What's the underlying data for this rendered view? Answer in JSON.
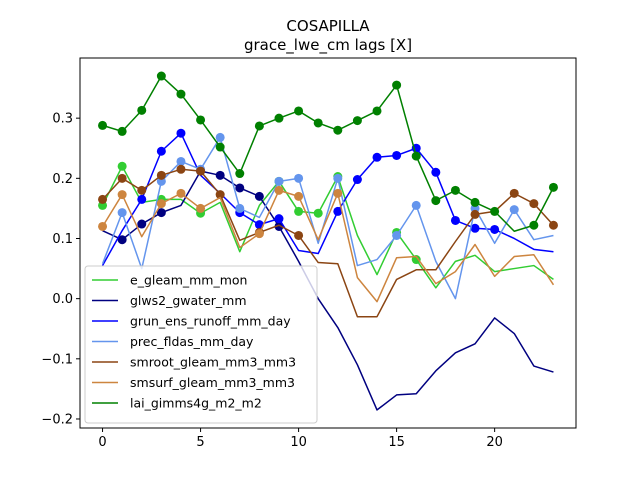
{
  "chart_data": {
    "type": "line",
    "title": "COSAPILLA",
    "subtitle": "grace_lwe_cm lags [X]",
    "xlabel": "",
    "ylabel": "",
    "xlim": [
      -1.15,
      24.15
    ],
    "ylim": [
      -0.215,
      0.4
    ],
    "x_ticks": [
      0,
      5,
      10,
      15,
      20
    ],
    "y_ticks": [
      -0.2,
      -0.1,
      0.0,
      0.1,
      0.2,
      0.3
    ],
    "y_tick_labels": [
      "−0.2",
      "−0.1",
      "0.0",
      "0.1",
      "0.2",
      "0.3"
    ],
    "grid": false,
    "legend_position": "lower-left",
    "x": [
      0,
      1,
      2,
      3,
      4,
      5,
      6,
      7,
      8,
      9,
      10,
      11,
      12,
      13,
      14,
      15,
      16,
      17,
      18,
      19,
      20,
      21,
      22,
      23
    ],
    "series": [
      {
        "name": "e_gleam_mm_mon",
        "color": "#32cd32",
        "values": [
          0.155,
          0.22,
          0.16,
          0.165,
          0.165,
          0.142,
          0.16,
          0.078,
          0.155,
          0.195,
          0.145,
          0.142,
          0.203,
          0.105,
          0.04,
          0.11,
          0.065,
          0.018,
          0.062,
          0.072,
          0.045,
          0.05,
          0.055,
          0.032
        ],
        "markers": [
          0,
          1,
          3,
          5,
          9,
          10,
          11,
          12,
          15,
          16
        ]
      },
      {
        "name": "glws2_gwater_mm",
        "color": "#000080",
        "values": [
          0.113,
          0.098,
          0.124,
          0.143,
          0.155,
          0.212,
          0.205,
          0.184,
          0.17,
          0.12,
          0.062,
          0.0,
          -0.048,
          -0.11,
          -0.185,
          -0.16,
          -0.158,
          -0.12,
          -0.09,
          -0.075,
          -0.032,
          -0.058,
          -0.112,
          -0.122
        ],
        "markers": [
          1,
          2,
          3,
          5,
          6,
          7,
          8,
          9
        ]
      },
      {
        "name": "grun_ens_runoff_mm_day",
        "color": "#0000ff",
        "values": [
          0.055,
          0.113,
          0.165,
          0.245,
          0.275,
          0.205,
          0.175,
          0.143,
          0.123,
          0.133,
          0.08,
          0.075,
          0.145,
          0.198,
          0.235,
          0.238,
          0.25,
          0.21,
          0.13,
          0.117,
          0.115,
          0.1,
          0.082,
          0.078
        ],
        "markers": [
          2,
          3,
          4,
          7,
          8,
          9,
          12,
          13,
          14,
          15,
          16,
          17,
          18,
          19,
          20
        ]
      },
      {
        "name": "prec_fldas_mm_day",
        "color": "#6495ed",
        "values": [
          0.058,
          0.143,
          0.05,
          0.195,
          0.228,
          0.215,
          0.268,
          0.15,
          0.135,
          0.195,
          0.2,
          0.092,
          0.2,
          0.055,
          0.065,
          0.105,
          0.155,
          0.062,
          0.0,
          0.15,
          0.092,
          0.148,
          0.098,
          0.105
        ],
        "markers": [
          1,
          3,
          4,
          5,
          6,
          7,
          9,
          10,
          12,
          15,
          16,
          19,
          21
        ]
      },
      {
        "name": "smroot_gleam_mm3_mm3",
        "color": "#8b4513",
        "values": [
          0.165,
          0.2,
          0.18,
          0.205,
          0.215,
          0.212,
          0.173,
          0.097,
          0.11,
          0.122,
          0.105,
          0.06,
          0.058,
          -0.03,
          -0.03,
          0.032,
          0.048,
          0.048,
          0.095,
          0.14,
          0.145,
          0.175,
          0.158,
          0.122
        ],
        "markers": [
          0,
          1,
          2,
          3,
          4,
          5,
          6,
          8,
          10,
          19,
          21,
          22,
          23
        ]
      },
      {
        "name": "smsurf_gleam_mm3_mm3",
        "color": "#cd853f",
        "values": [
          0.12,
          0.173,
          0.103,
          0.158,
          0.175,
          0.15,
          0.168,
          0.085,
          0.108,
          0.18,
          0.17,
          0.098,
          0.175,
          0.035,
          -0.005,
          0.068,
          0.07,
          0.025,
          0.045,
          0.09,
          0.037,
          0.07,
          0.073,
          0.023
        ],
        "markers": [
          0,
          1,
          3,
          4,
          5,
          8,
          9,
          10,
          12
        ]
      },
      {
        "name": "lai_gimms4g_m2_m2",
        "color": "#008000",
        "values": [
          0.288,
          0.278,
          0.313,
          0.37,
          0.34,
          0.297,
          0.252,
          0.208,
          0.287,
          0.3,
          0.312,
          0.292,
          0.28,
          0.296,
          0.312,
          0.355,
          0.237,
          0.163,
          0.18,
          0.16,
          0.145,
          0.112,
          0.122,
          0.185
        ],
        "markers": [
          0,
          1,
          2,
          3,
          4,
          5,
          6,
          7,
          8,
          9,
          10,
          11,
          12,
          13,
          14,
          15,
          16,
          17,
          18,
          19,
          20,
          22,
          23
        ]
      }
    ]
  }
}
